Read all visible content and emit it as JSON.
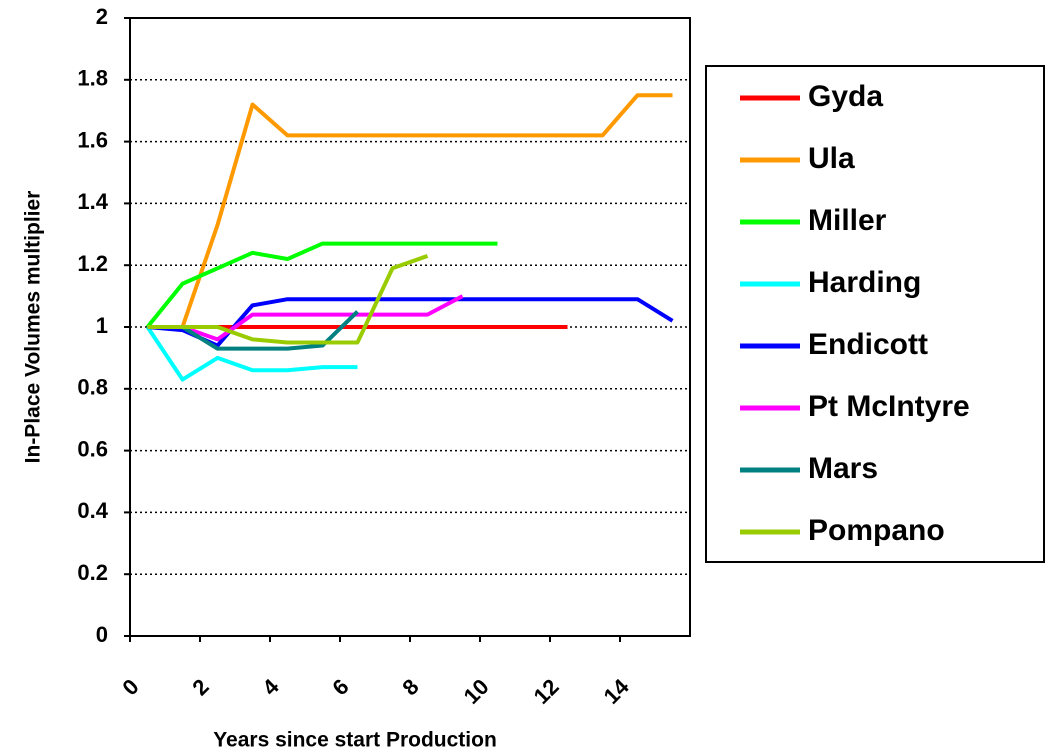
{
  "chart_data": {
    "type": "line",
    "x_label": "Years since start Production",
    "y_label": "In-Place Volumes multiplier",
    "x": [
      0.5,
      1.5,
      2.5,
      3.5,
      4.5,
      5.5,
      6.5,
      7.5,
      8.5,
      9.5,
      10.5,
      11.5,
      12.5,
      13.5,
      14.5,
      15.5
    ],
    "xlim": [
      0,
      16
    ],
    "xticks": [
      0,
      2,
      4,
      6,
      8,
      10,
      12,
      14
    ],
    "ylim": [
      0,
      2
    ],
    "yticks": [
      0,
      0.2,
      0.4,
      0.6,
      0.8,
      1,
      1.2,
      1.4,
      1.6,
      1.8,
      2
    ],
    "grid": true,
    "legend": "right",
    "series": [
      {
        "name": "Gyda",
        "color": "#ff0000",
        "values": [
          1,
          1,
          1,
          1,
          1,
          1,
          1,
          1,
          1,
          1,
          1,
          1,
          1,
          null,
          null,
          null
        ]
      },
      {
        "name": "Ula",
        "color": "#ff9900",
        "values": [
          1,
          1,
          1.33,
          1.72,
          1.62,
          1.62,
          1.62,
          1.62,
          1.62,
          1.62,
          1.62,
          1.62,
          1.62,
          1.62,
          1.75,
          1.75
        ]
      },
      {
        "name": "Miller",
        "color": "#00ff00",
        "values": [
          1,
          1.14,
          1.19,
          1.24,
          1.22,
          1.27,
          1.27,
          1.27,
          1.27,
          1.27,
          1.27,
          null,
          null,
          null,
          null,
          null
        ]
      },
      {
        "name": "Harding",
        "color": "#00ffff",
        "values": [
          1,
          0.83,
          0.9,
          0.86,
          0.86,
          0.87,
          0.87,
          null,
          null,
          null,
          null,
          null,
          null,
          null,
          null,
          null
        ]
      },
      {
        "name": "Endicott",
        "color": "#0000ff",
        "values": [
          1,
          0.99,
          0.94,
          1.07,
          1.09,
          1.09,
          1.09,
          1.09,
          1.09,
          1.09,
          1.09,
          1.09,
          1.09,
          1.09,
          1.09,
          1.02
        ]
      },
      {
        "name": "Pt McIntyre",
        "color": "#ff00ff",
        "values": [
          1,
          1,
          0.96,
          1.04,
          1.04,
          1.04,
          1.04,
          1.04,
          1.04,
          1.1,
          null,
          null,
          null,
          null,
          null,
          null
        ]
      },
      {
        "name": "Mars",
        "color": "#008080",
        "values": [
          1,
          1,
          0.93,
          0.93,
          0.93,
          0.94,
          1.05,
          null,
          null,
          null,
          null,
          null,
          null,
          null,
          null,
          null
        ]
      },
      {
        "name": "Pompano",
        "color": "#99cc00",
        "values": [
          1,
          1,
          1,
          0.96,
          0.95,
          0.95,
          0.95,
          1.19,
          1.23,
          null,
          null,
          null,
          null,
          null,
          null,
          null
        ]
      }
    ]
  }
}
